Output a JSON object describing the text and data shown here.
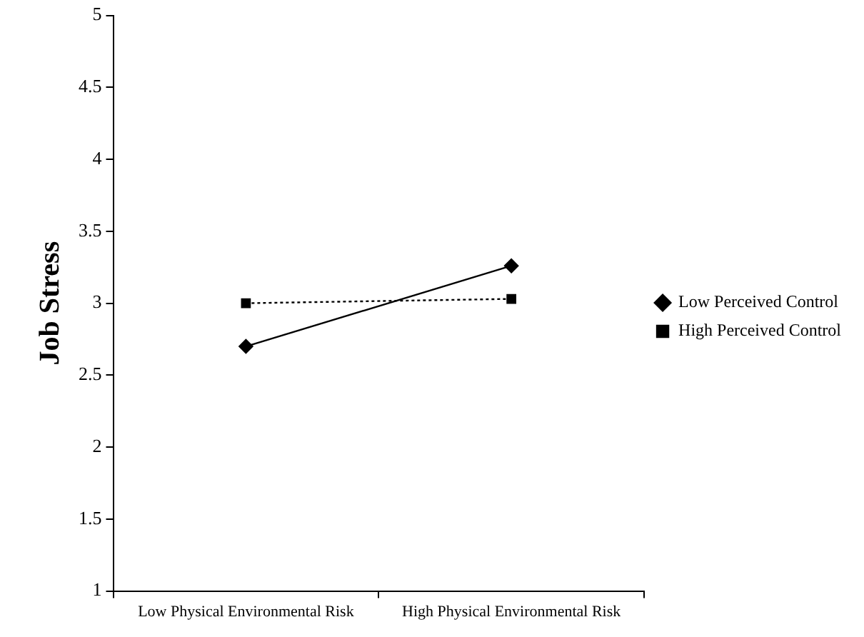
{
  "chart_data": {
    "type": "line",
    "ylabel": "Job Stress",
    "categories": [
      "Low Physical Environmental Risk",
      "High Physical Environmental Risk"
    ],
    "series": [
      {
        "name": "Low Perceived Control",
        "color": "#000000",
        "values": [
          2.7,
          3.26
        ],
        "marker": "diamond",
        "line_style": "solid"
      },
      {
        "name": "High Perceived Control",
        "color": "#000000",
        "values": [
          3.0,
          3.03
        ],
        "marker": "square",
        "line_style": "dotted"
      }
    ],
    "ylim": [
      1,
      5
    ],
    "yticks": [
      1,
      1.5,
      2,
      2.5,
      3,
      3.5,
      4,
      4.5,
      5
    ],
    "grid": false,
    "legend": "right"
  }
}
